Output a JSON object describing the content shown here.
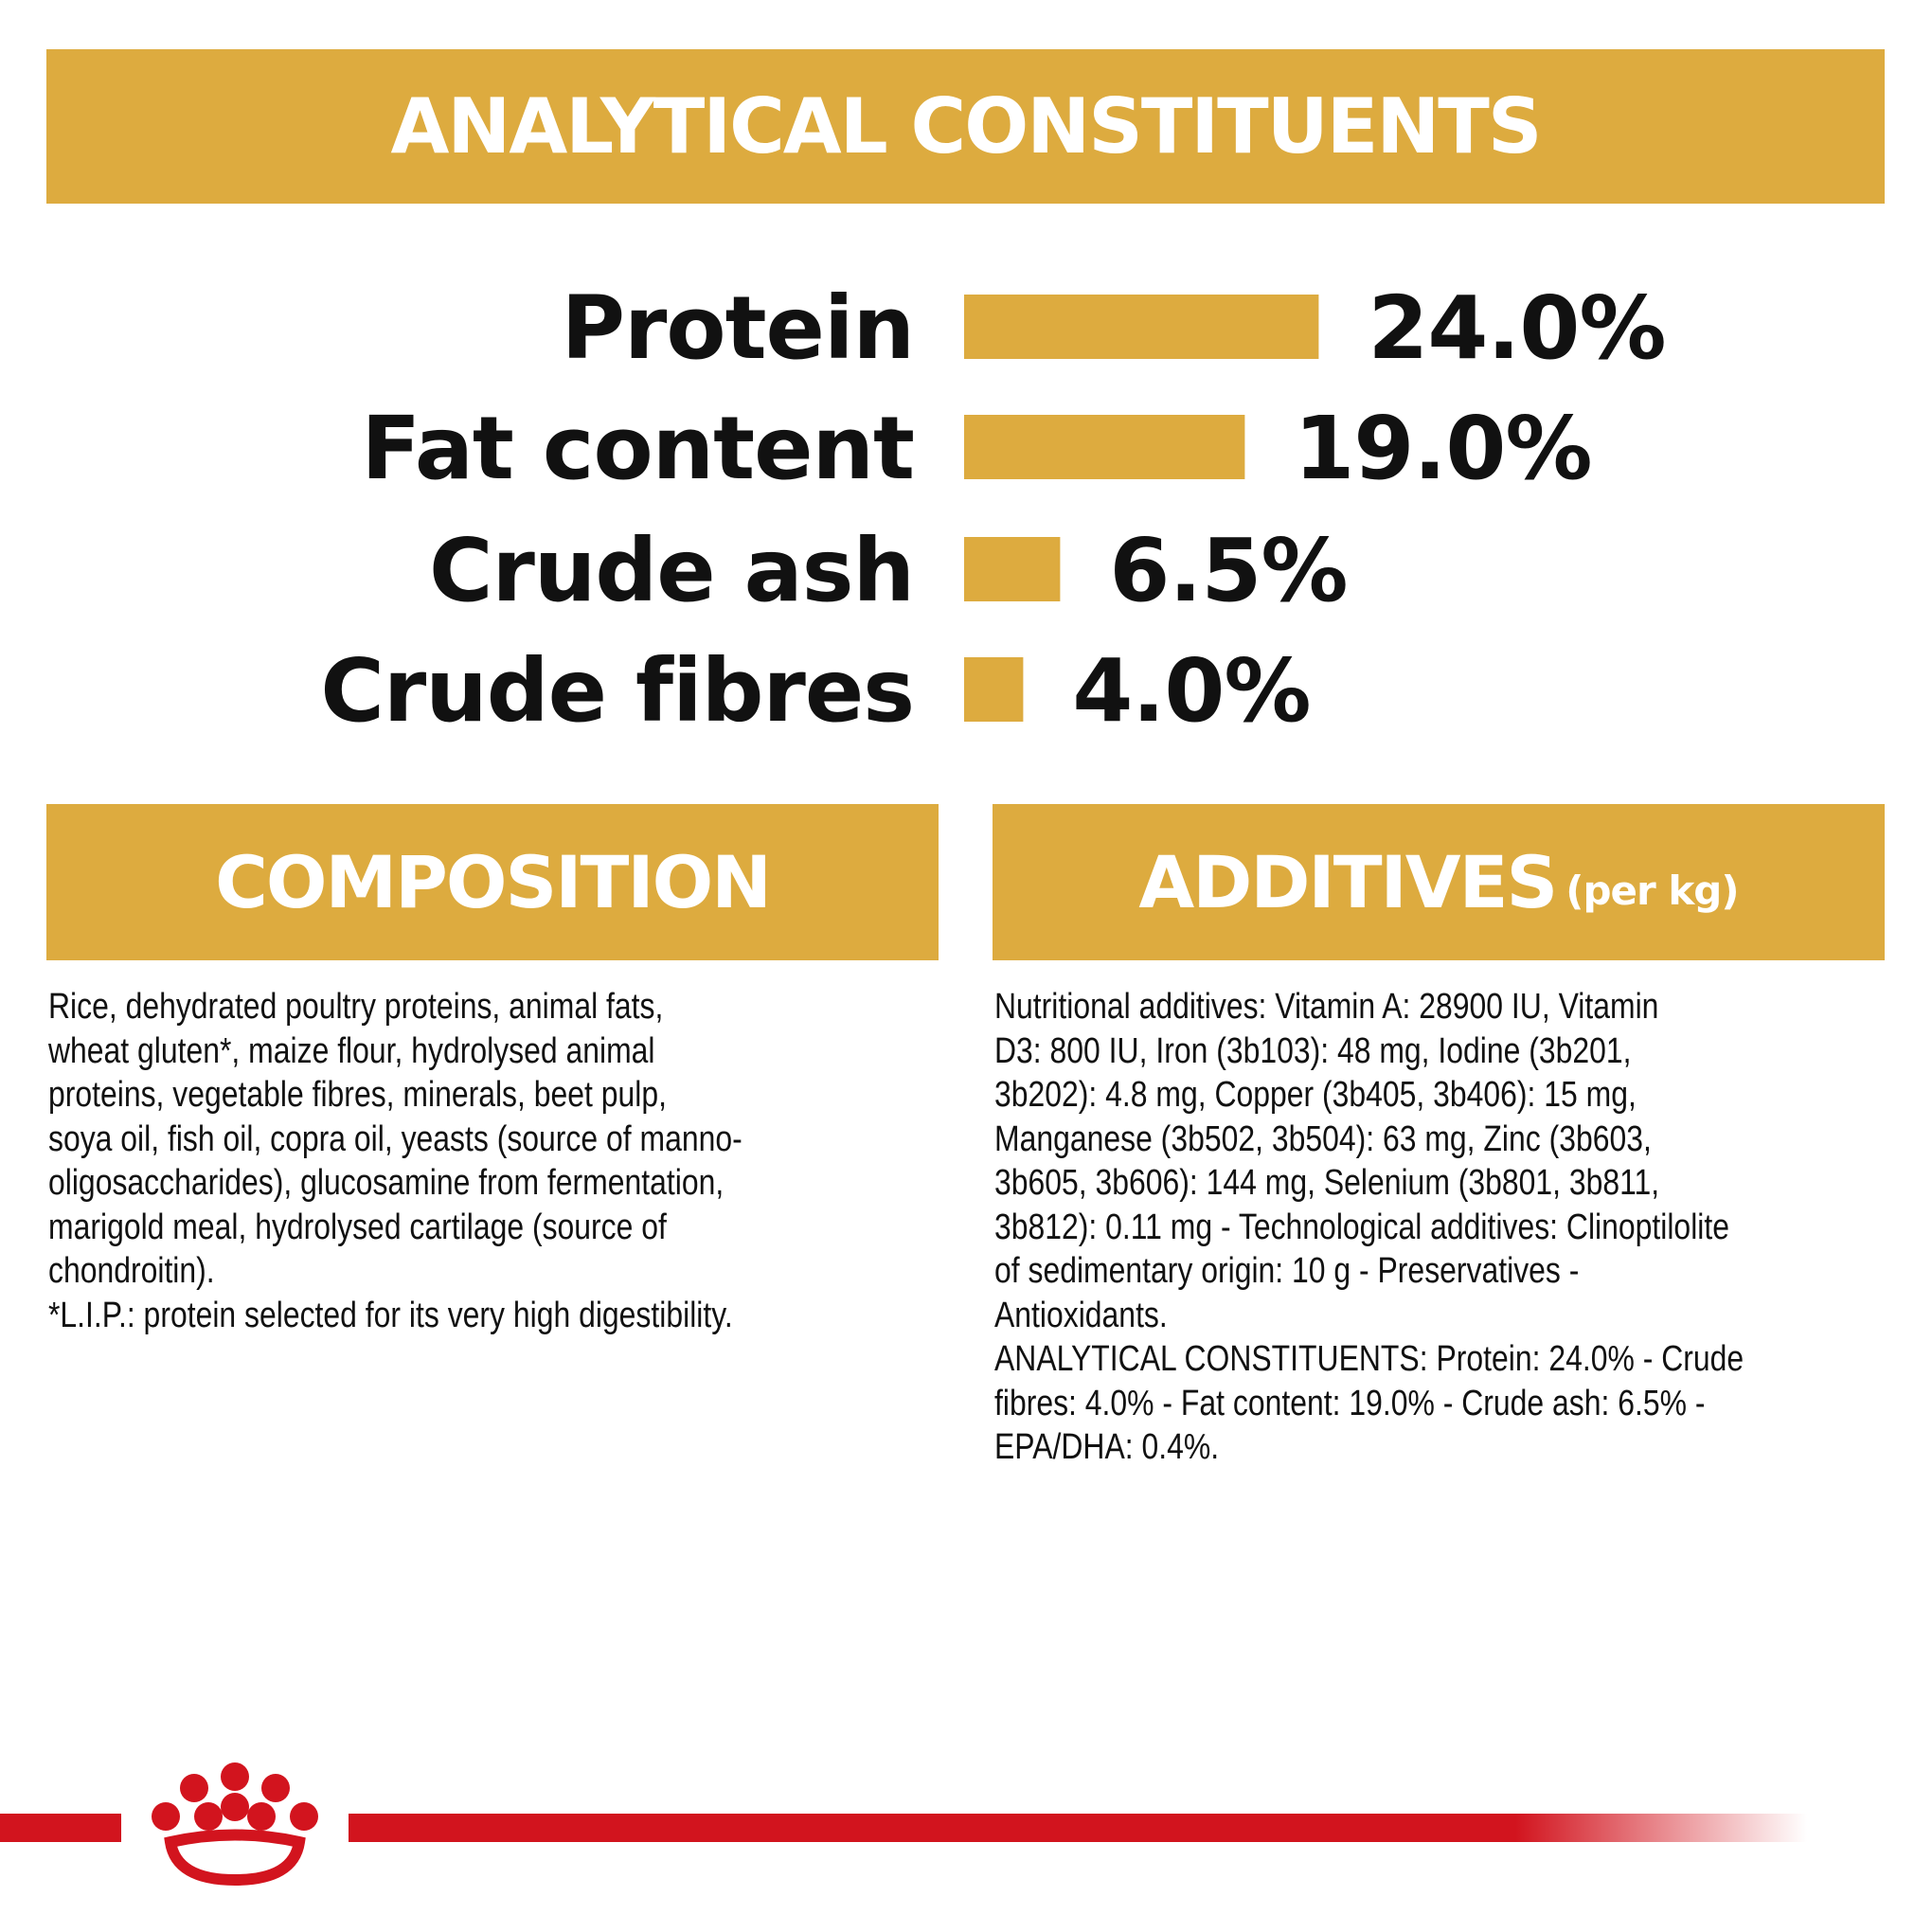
{
  "chart_data": {
    "type": "bar",
    "orientation": "horizontal",
    "title": "ANALYTICAL CONSTITUENTS",
    "categories": [
      "Protein",
      "Fat content",
      "Crude ash",
      "Crude fibres"
    ],
    "values": [
      24.0,
      19.0,
      6.5,
      4.0
    ],
    "value_labels": [
      "24.0%",
      "19.0%",
      "6.5%",
      "4.0%"
    ],
    "color": "#ddab3f"
  },
  "composition": {
    "title": "COMPOSITION",
    "lines": [
      "Rice, dehydrated poultry proteins, animal fats,",
      "wheat gluten*, maize flour, hydrolysed animal",
      "proteins, vegetable fibres, minerals, beet pulp,",
      "soya oil, fish oil, copra oil, yeasts (source of manno-",
      "oligosaccharides), glucosamine from fermentation,",
      "marigold meal, hydrolysed cartilage (source of",
      "chondroitin).",
      "*L.I.P.: protein selected for its very high digestibility."
    ]
  },
  "additives": {
    "title": "ADDITIVES",
    "subtitle": "(per kg)",
    "lines": [
      "Nutritional additives: Vitamin A: 28900 IU, Vitamin",
      "D3: 800 IU, Iron (3b103): 48 mg, Iodine (3b201,",
      "3b202): 4.8 mg, Copper (3b405, 3b406): 15 mg,",
      "Manganese (3b502, 3b504): 63 mg, Zinc (3b603,",
      "3b605, 3b606): 144 mg, Selenium (3b801, 3b811,",
      "3b812): 0.11 mg - Technological additives: Clinoptilolite",
      "of sedimentary origin: 10 g - Preservatives -",
      "Antioxidants.",
      "ANALYTICAL CONSTITUENTS: Protein: 24.0% - Crude",
      "fibres: 4.0% - Fat content: 19.0% - Crude ash: 6.5% -",
      "EPA/DHA: 0.4%."
    ]
  }
}
